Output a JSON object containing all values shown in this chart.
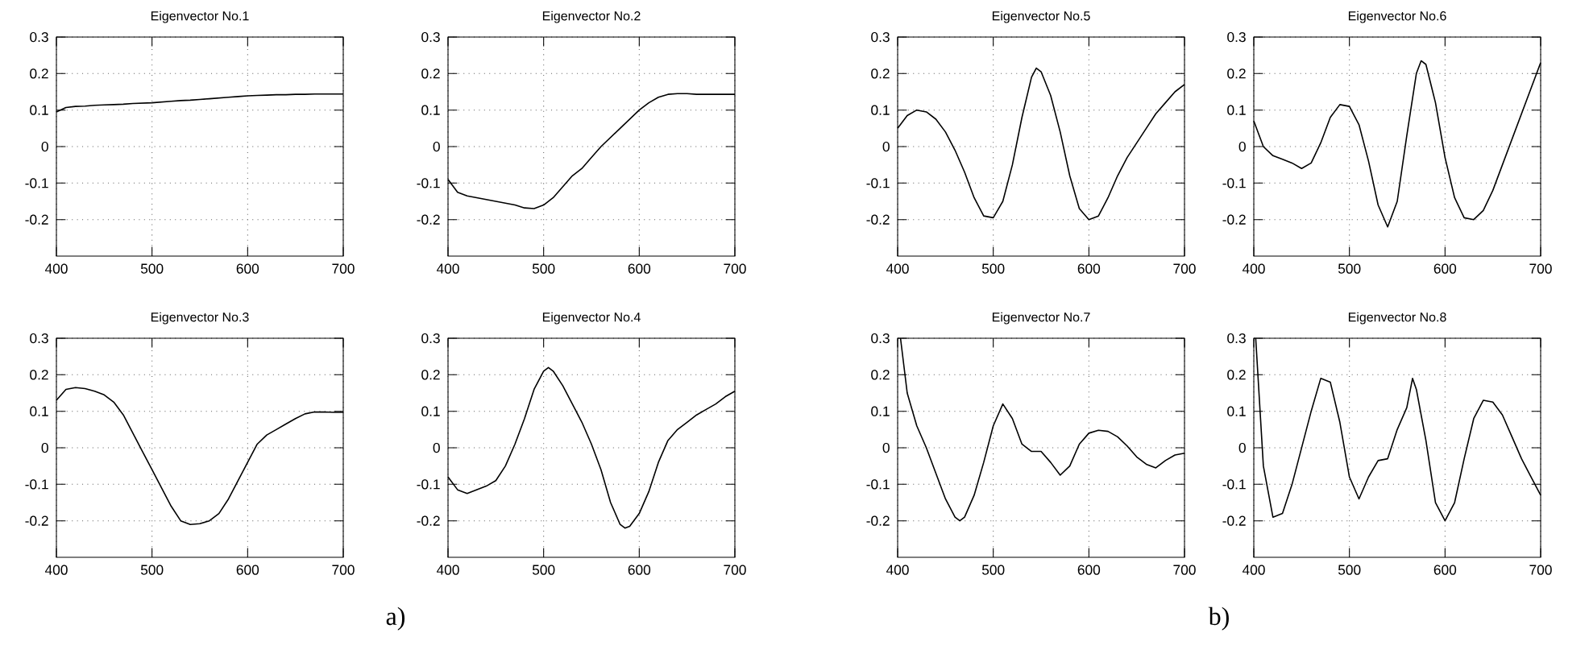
{
  "chart_data": [
    {
      "type": "line",
      "title": "Eigenvector No.1",
      "xlim": [
        400,
        700
      ],
      "ylim": [
        -0.3,
        0.3
      ],
      "xticks": [
        400,
        500,
        600,
        700
      ],
      "yticks": [
        -0.2,
        -0.1,
        0,
        0.1,
        0.2,
        0.3
      ],
      "grid": true,
      "color": "#000000",
      "x": [
        400,
        410,
        420,
        430,
        440,
        450,
        460,
        470,
        480,
        490,
        500,
        510,
        520,
        530,
        540,
        550,
        560,
        570,
        580,
        590,
        600,
        610,
        620,
        630,
        640,
        650,
        660,
        670,
        680,
        690,
        700
      ],
      "values": [
        0.095,
        0.107,
        0.11,
        0.111,
        0.113,
        0.114,
        0.115,
        0.116,
        0.118,
        0.119,
        0.12,
        0.122,
        0.124,
        0.126,
        0.127,
        0.129,
        0.131,
        0.133,
        0.135,
        0.137,
        0.139,
        0.14,
        0.141,
        0.142,
        0.142,
        0.143,
        0.143,
        0.144,
        0.144,
        0.144,
        0.144
      ]
    },
    {
      "type": "line",
      "title": "Eigenvector No.2",
      "xlim": [
        400,
        700
      ],
      "ylim": [
        -0.3,
        0.3
      ],
      "xticks": [
        400,
        500,
        600,
        700
      ],
      "yticks": [
        -0.2,
        -0.1,
        0,
        0.1,
        0.2,
        0.3
      ],
      "grid": true,
      "color": "#000000",
      "x": [
        400,
        410,
        420,
        430,
        440,
        450,
        460,
        470,
        480,
        490,
        500,
        510,
        520,
        530,
        540,
        550,
        560,
        570,
        580,
        590,
        600,
        610,
        620,
        630,
        640,
        650,
        660,
        670,
        680,
        690,
        700
      ],
      "values": [
        -0.09,
        -0.125,
        -0.135,
        -0.14,
        -0.145,
        -0.15,
        -0.155,
        -0.16,
        -0.168,
        -0.17,
        -0.16,
        -0.14,
        -0.11,
        -0.08,
        -0.06,
        -0.03,
        0.0,
        0.025,
        0.05,
        0.075,
        0.1,
        0.12,
        0.135,
        0.143,
        0.145,
        0.145,
        0.143,
        0.143,
        0.143,
        0.143,
        0.143
      ]
    },
    {
      "type": "line",
      "title": "Eigenvector No.3",
      "xlim": [
        400,
        700
      ],
      "ylim": [
        -0.3,
        0.3
      ],
      "xticks": [
        400,
        500,
        600,
        700
      ],
      "yticks": [
        -0.2,
        -0.1,
        0,
        0.1,
        0.2,
        0.3
      ],
      "grid": true,
      "color": "#000000",
      "x": [
        400,
        410,
        420,
        430,
        440,
        450,
        460,
        470,
        480,
        490,
        500,
        510,
        520,
        530,
        540,
        550,
        560,
        570,
        580,
        590,
        600,
        610,
        620,
        630,
        640,
        650,
        660,
        670,
        680,
        690,
        700
      ],
      "values": [
        0.13,
        0.16,
        0.165,
        0.162,
        0.155,
        0.145,
        0.125,
        0.09,
        0.04,
        -0.01,
        -0.06,
        -0.11,
        -0.16,
        -0.2,
        -0.21,
        -0.208,
        -0.2,
        -0.18,
        -0.14,
        -0.09,
        -0.04,
        0.01,
        0.035,
        0.05,
        0.065,
        0.08,
        0.093,
        0.098,
        0.098,
        0.097,
        0.097
      ]
    },
    {
      "type": "line",
      "title": "Eigenvector No.4",
      "xlim": [
        400,
        700
      ],
      "ylim": [
        -0.3,
        0.3
      ],
      "xticks": [
        400,
        500,
        600,
        700
      ],
      "yticks": [
        -0.2,
        -0.1,
        0,
        0.1,
        0.2,
        0.3
      ],
      "grid": true,
      "color": "#000000",
      "annotations": [
        "a)"
      ],
      "x": [
        400,
        410,
        420,
        430,
        440,
        450,
        460,
        470,
        480,
        490,
        500,
        505,
        510,
        520,
        530,
        540,
        550,
        560,
        570,
        580,
        585,
        590,
        600,
        610,
        620,
        630,
        640,
        650,
        660,
        670,
        680,
        690,
        700
      ],
      "values": [
        -0.08,
        -0.115,
        -0.125,
        -0.115,
        -0.105,
        -0.09,
        -0.05,
        0.01,
        0.08,
        0.16,
        0.21,
        0.22,
        0.21,
        0.17,
        0.12,
        0.07,
        0.01,
        -0.06,
        -0.15,
        -0.21,
        -0.22,
        -0.215,
        -0.18,
        -0.12,
        -0.04,
        0.02,
        0.05,
        0.07,
        0.09,
        0.105,
        0.12,
        0.14,
        0.155
      ]
    },
    {
      "type": "line",
      "title": "Eigenvector No.5",
      "xlim": [
        400,
        700
      ],
      "ylim": [
        -0.3,
        0.3
      ],
      "xticks": [
        400,
        500,
        600,
        700
      ],
      "yticks": [
        -0.2,
        -0.1,
        0,
        0.1,
        0.2,
        0.3
      ],
      "grid": true,
      "color": "#000000",
      "x": [
        400,
        410,
        420,
        430,
        440,
        450,
        460,
        470,
        480,
        490,
        500,
        510,
        520,
        530,
        540,
        545,
        550,
        560,
        570,
        580,
        590,
        600,
        610,
        620,
        630,
        640,
        650,
        660,
        670,
        680,
        690,
        700
      ],
      "values": [
        0.05,
        0.085,
        0.1,
        0.095,
        0.075,
        0.04,
        -0.01,
        -0.07,
        -0.14,
        -0.19,
        -0.195,
        -0.15,
        -0.05,
        0.08,
        0.19,
        0.215,
        0.205,
        0.14,
        0.04,
        -0.08,
        -0.17,
        -0.2,
        -0.19,
        -0.14,
        -0.08,
        -0.03,
        0.01,
        0.05,
        0.09,
        0.12,
        0.15,
        0.17
      ]
    },
    {
      "type": "line",
      "title": "Eigenvector No.6",
      "xlim": [
        400,
        700
      ],
      "ylim": [
        -0.3,
        0.3
      ],
      "xticks": [
        400,
        500,
        600,
        700
      ],
      "yticks": [
        -0.2,
        -0.1,
        0,
        0.1,
        0.2,
        0.3
      ],
      "grid": true,
      "color": "#000000",
      "x": [
        400,
        410,
        420,
        430,
        440,
        450,
        460,
        470,
        480,
        490,
        500,
        510,
        520,
        530,
        540,
        550,
        560,
        570,
        575,
        580,
        590,
        600,
        610,
        620,
        630,
        640,
        650,
        660,
        670,
        680,
        690,
        700
      ],
      "values": [
        0.07,
        0.0,
        -0.025,
        -0.035,
        -0.045,
        -0.06,
        -0.045,
        0.01,
        0.08,
        0.115,
        0.11,
        0.06,
        -0.04,
        -0.16,
        -0.22,
        -0.15,
        0.03,
        0.2,
        0.235,
        0.225,
        0.12,
        -0.03,
        -0.14,
        -0.195,
        -0.2,
        -0.175,
        -0.12,
        -0.05,
        0.02,
        0.09,
        0.16,
        0.23
      ]
    },
    {
      "type": "line",
      "title": "Eigenvector No.7",
      "xlim": [
        400,
        700
      ],
      "ylim": [
        -0.3,
        0.3
      ],
      "xticks": [
        400,
        500,
        600,
        700
      ],
      "yticks": [
        -0.2,
        -0.1,
        0,
        0.1,
        0.2,
        0.3
      ],
      "grid": true,
      "color": "#000000",
      "x": [
        403,
        410,
        420,
        430,
        440,
        450,
        460,
        465,
        470,
        480,
        490,
        500,
        510,
        520,
        530,
        540,
        550,
        560,
        570,
        580,
        590,
        600,
        610,
        620,
        630,
        640,
        650,
        660,
        670,
        680,
        690,
        700
      ],
      "values": [
        0.3,
        0.15,
        0.06,
        0.0,
        -0.07,
        -0.14,
        -0.19,
        -0.2,
        -0.19,
        -0.13,
        -0.04,
        0.06,
        0.12,
        0.08,
        0.01,
        -0.01,
        -0.01,
        -0.04,
        -0.075,
        -0.05,
        0.01,
        0.04,
        0.048,
        0.045,
        0.03,
        0.005,
        -0.025,
        -0.045,
        -0.055,
        -0.035,
        -0.02,
        -0.015
      ]
    },
    {
      "type": "line",
      "title": "Eigenvector No.8",
      "xlim": [
        400,
        700
      ],
      "ylim": [
        -0.3,
        0.3
      ],
      "xticks": [
        400,
        500,
        600,
        700
      ],
      "yticks": [
        -0.2,
        -0.1,
        0,
        0.1,
        0.2,
        0.3
      ],
      "grid": true,
      "color": "#000000",
      "annotations": [
        "b)"
      ],
      "x": [
        402,
        410,
        420,
        430,
        440,
        450,
        460,
        470,
        480,
        490,
        500,
        510,
        520,
        530,
        540,
        550,
        560,
        566,
        570,
        580,
        590,
        600,
        610,
        620,
        630,
        640,
        650,
        660,
        670,
        680,
        690,
        700
      ],
      "values": [
        0.3,
        -0.05,
        -0.19,
        -0.18,
        -0.1,
        0.0,
        0.1,
        0.19,
        0.18,
        0.07,
        -0.08,
        -0.14,
        -0.08,
        -0.035,
        -0.03,
        0.05,
        0.11,
        0.19,
        0.16,
        0.02,
        -0.15,
        -0.2,
        -0.15,
        -0.03,
        0.08,
        0.13,
        0.125,
        0.09,
        0.03,
        -0.03,
        -0.08,
        -0.13
      ]
    }
  ]
}
